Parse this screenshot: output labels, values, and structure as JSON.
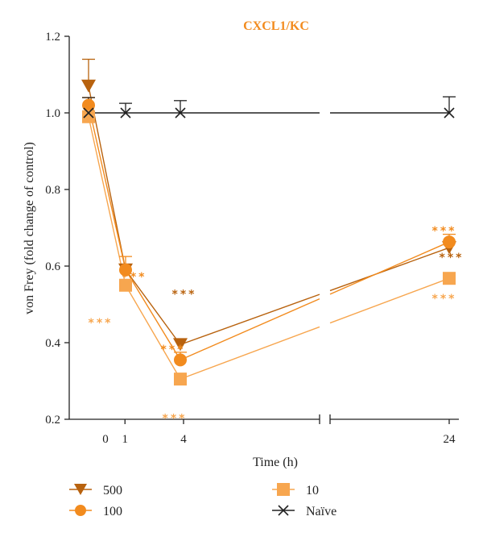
{
  "chart_data": {
    "type": "line",
    "title": "CXCL1/KC",
    "xlabel": "Time (h)",
    "ylabel": "von Frey (fold change of control)",
    "x_ticks": [
      "0",
      "1",
      "4",
      "24"
    ],
    "y_ticks": [
      "0.2",
      "0.4",
      "0.6",
      "0.8",
      "1.0",
      "1.2"
    ],
    "ylim": [
      0.2,
      1.2
    ],
    "x_axis_break": true,
    "series": [
      {
        "name": "500",
        "color": "#b8620e",
        "marker": "triangle-down",
        "x": [
          0,
          1,
          4,
          24
        ],
        "y": [
          1.07,
          0.59,
          0.395,
          0.648
        ],
        "err": [
          0.07,
          0,
          0,
          0
        ]
      },
      {
        "name": "100",
        "color": "#f28b1e",
        "marker": "circle",
        "x": [
          0,
          1,
          4,
          24
        ],
        "y": [
          1.02,
          0.59,
          0.355,
          0.663
        ],
        "err": [
          0.02,
          0.035,
          0.02,
          0.02
        ]
      },
      {
        "name": "10",
        "color": "#f7a64f",
        "marker": "square",
        "x": [
          0,
          1,
          4,
          24
        ],
        "y": [
          0.99,
          0.55,
          0.305,
          0.568
        ],
        "err": [
          0.05,
          0,
          0,
          0
        ]
      },
      {
        "name": "Naïve",
        "color": "#222222",
        "marker": "x",
        "x": [
          0,
          1,
          4,
          24
        ],
        "y": [
          1.0,
          1.0,
          1.0,
          1.0
        ],
        "err": [
          0.04,
          0.025,
          0.032,
          0.042
        ]
      }
    ],
    "annotations": [
      {
        "text": "***",
        "series": "10",
        "x": 1,
        "y": 0.455
      },
      {
        "text": "***",
        "series": "100",
        "x": 1,
        "y": 0.575
      },
      {
        "text": "***",
        "series": "500",
        "x": 4,
        "y": 0.53
      },
      {
        "text": "***",
        "series": "100",
        "x": 4,
        "y": 0.385
      },
      {
        "text": "***",
        "series": "10",
        "x": 4,
        "y": 0.205
      },
      {
        "text": "***",
        "series": "100",
        "x": 24,
        "y": 0.695
      },
      {
        "text": "***",
        "series": "500",
        "x": 24,
        "y": 0.625
      },
      {
        "text": "***",
        "series": "10",
        "x": 24,
        "y": 0.518
      }
    ],
    "legend_position": "bottom",
    "grid": false
  }
}
